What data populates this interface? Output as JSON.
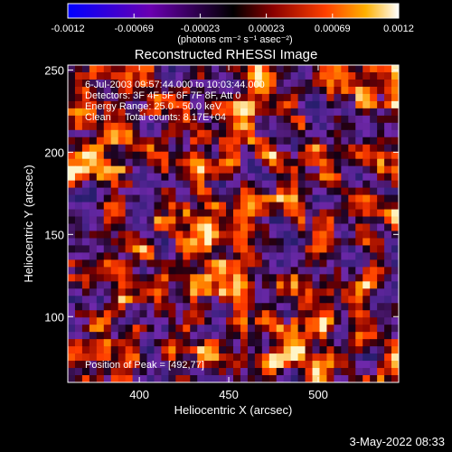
{
  "chart_data": {
    "type": "heatmap",
    "title": "Reconstructed RHESSI Image",
    "xlabel": "Heliocentric X (arcsec)",
    "ylabel": "Heliocentric Y (arcsec)",
    "xlim": [
      360,
      545
    ],
    "ylim": [
      60,
      253
    ],
    "x_ticks": [
      400,
      450,
      500
    ],
    "y_ticks": [
      100,
      150,
      200,
      250
    ],
    "colorbar": {
      "ticks": [
        "-0.0012",
        "-0.00069",
        "-0.00023",
        "0.00023",
        "0.00069",
        "0.0012"
      ],
      "range": [
        -0.0012,
        0.0012
      ],
      "units_label": "(photons cm⁻² s⁻¹ asec⁻²)"
    },
    "peak": {
      "x": 492,
      "y": 77
    },
    "grid": false
  },
  "annotations": {
    "time_range": "6-Jul-2003 09:57:44.000 to 10:03:44.000",
    "detectors": "Detectors: 3F 4F 5F 6F 7F 8F, Att 0",
    "energy": "Energy Range: 25.0 - 50.0 keV",
    "method": "Clean     Total counts: 8.17E+04",
    "peak_position": "Position of Peak = [492,77]"
  },
  "footer_date": "3-May-2022 08:33"
}
